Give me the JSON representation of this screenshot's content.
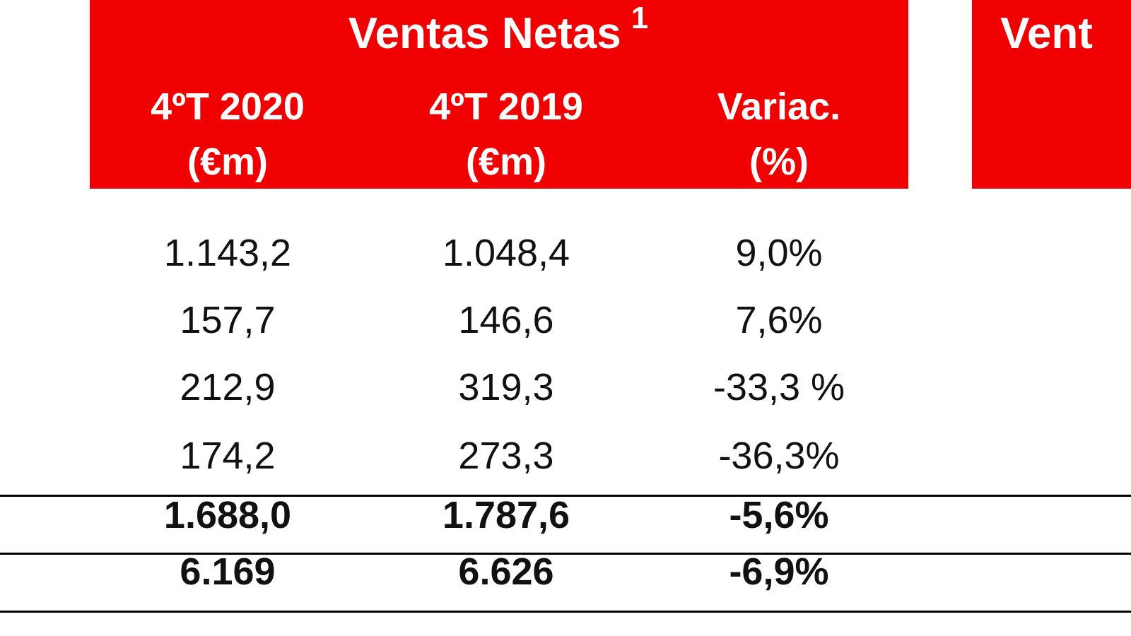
{
  "header": {
    "title": "Ventas Netas",
    "note": "1",
    "columns": [
      {
        "period": "4ºT 2020",
        "unit": "(€m)"
      },
      {
        "period": "4ºT 2019",
        "unit": "(€m)"
      },
      {
        "period": "Variac.",
        "unit": "(%)"
      }
    ],
    "next_title": "Vent"
  },
  "table": {
    "rows": [
      [
        "1.143,2",
        "1.048,4",
        "9,0%"
      ],
      [
        "157,7",
        "146,6",
        "7,6%"
      ],
      [
        "212,9",
        "319,3",
        "-33,3 %"
      ],
      [
        "174,2",
        "273,3",
        "-36,3%"
      ],
      [
        "1.688,0",
        "1.787,6",
        "-5,6%"
      ],
      [
        "6.169",
        "6.626",
        "-6,9%"
      ]
    ]
  }
}
